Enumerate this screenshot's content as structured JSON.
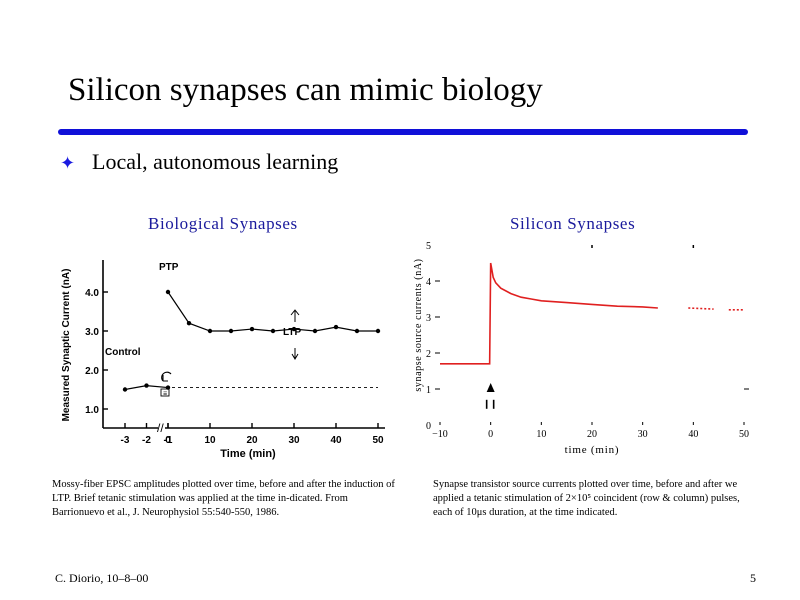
{
  "slide": {
    "title": "Silicon synapses can mimic biology",
    "bullet": "Local, autonomous learning",
    "footer_left": "C. Diorio, 10–8–00",
    "page_number": "5",
    "colors": {
      "title_rule": "#1010d8",
      "panel_title": "#1a1a9c",
      "silicon_trace": "#e02020"
    }
  },
  "panels": {
    "bio_title": "Biological Synapses",
    "sil_title": "Silicon Synapses",
    "bio_caption": "Mossy-fiber EPSC amplitudes plotted over time, before and after the induction of LTP. Brief tetanic stimulation was applied at the time in-dicated. From Barrionuevo et al., J. Neurophysiol 55:540-550, 1986.",
    "sil_caption": "Synapse transistor source currents plotted over time, before and after we applied a tetanic stimulation of 2×10⁵ coincident (row & column) pulses, each of 10μs duration, at the time indicated."
  },
  "chart_data": [
    {
      "type": "line",
      "xlabel": "Time (min)",
      "ylabel": "Measured Synaptic Current (nA)",
      "x_ticks": [
        "-3",
        "-2",
        "-1",
        "0",
        "10",
        "20",
        "30",
        "40",
        "50"
      ],
      "y_ticks": [
        "1.0",
        "2.0",
        "3.0",
        "4.0"
      ],
      "ylim": [
        0.6,
        4.2
      ],
      "series": [
        {
          "values": [
            [
              -3,
              1.5
            ],
            [
              -2,
              1.6
            ],
            [
              -1,
              1.55
            ]
          ]
        },
        {
          "values": [
            [
              0,
              4.0
            ],
            [
              5,
              3.2
            ],
            [
              10,
              3.0
            ],
            [
              15,
              3.0
            ],
            [
              20,
              3.05
            ],
            [
              25,
              3.0
            ],
            [
              30,
              3.05
            ],
            [
              35,
              3.0
            ],
            [
              40,
              3.1
            ],
            [
              45,
              3.0
            ],
            [
              50,
              3.0
            ]
          ]
        }
      ],
      "baseline": 1.55,
      "annotations": {
        "ptp": "PTP",
        "ltp": "LTP",
        "control": "Control",
        "stimulus_box": "≡"
      }
    },
    {
      "type": "line",
      "xlabel": "time (min)",
      "ylabel": "synapse source currents (nA)",
      "x_ticks": [
        "−10",
        "0",
        "10",
        "20",
        "30",
        "40",
        "50"
      ],
      "y_ticks": [
        "0",
        "1",
        "2",
        "3",
        "4",
        "5"
      ],
      "xlim": [
        -10,
        50
      ],
      "ylim": [
        0,
        5
      ],
      "series": [
        {
          "values": [
            [
              -10,
              1.7
            ],
            [
              -0.2,
              1.7
            ],
            [
              0,
              4.5
            ],
            [
              0.5,
              4.1
            ],
            [
              1,
              3.95
            ],
            [
              2,
              3.8
            ],
            [
              4,
              3.65
            ],
            [
              6,
              3.55
            ],
            [
              8,
              3.5
            ],
            [
              10,
              3.45
            ],
            [
              15,
              3.4
            ],
            [
              20,
              3.35
            ],
            [
              25,
              3.3
            ],
            [
              30,
              3.28
            ],
            [
              33,
              3.25
            ]
          ]
        },
        {
          "values": [
            [
              39,
              3.25
            ],
            [
              44,
              3.22
            ]
          ]
        },
        {
          "values": [
            [
              47,
              3.2
            ],
            [
              50,
              3.2
            ]
          ]
        }
      ]
    }
  ]
}
